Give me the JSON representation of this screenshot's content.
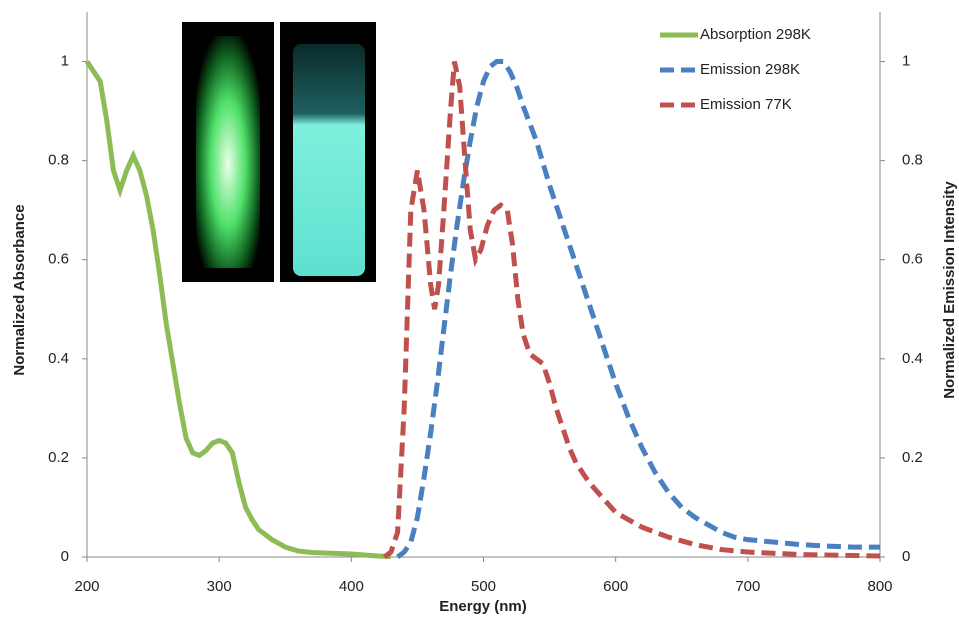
{
  "chart_data": {
    "type": "line",
    "x_label": "Energy (nm)",
    "y_label": "Normalized Absorbance",
    "y2_label": "Normalized Emission Intensity",
    "xlim": [
      200,
      800
    ],
    "xticks": [
      200,
      300,
      400,
      500,
      600,
      700,
      800
    ],
    "ylim": [
      0,
      1.1
    ],
    "yticks": [
      0,
      0.2,
      0.4,
      0.6,
      0.8,
      1
    ],
    "y2lim": [
      0,
      1.1
    ],
    "y2ticks": [
      0,
      0.2,
      0.4,
      0.6,
      0.8,
      1
    ],
    "legend": "top-right",
    "series": [
      {
        "name": "Absorption 298K",
        "color": "#8dbb55",
        "dash": false,
        "x": [
          200,
          205,
          210,
          215,
          220,
          225,
          230,
          235,
          240,
          245,
          250,
          255,
          260,
          265,
          270,
          275,
          280,
          285,
          290,
          295,
          300,
          305,
          310,
          315,
          320,
          325,
          330,
          340,
          350,
          360,
          370,
          380,
          390,
          400,
          410,
          420,
          430
        ],
        "values": [
          1.0,
          0.98,
          0.96,
          0.88,
          0.78,
          0.74,
          0.78,
          0.81,
          0.78,
          0.73,
          0.66,
          0.57,
          0.47,
          0.39,
          0.31,
          0.24,
          0.21,
          0.205,
          0.215,
          0.23,
          0.235,
          0.23,
          0.21,
          0.15,
          0.1,
          0.075,
          0.055,
          0.035,
          0.02,
          0.012,
          0.009,
          0.008,
          0.007,
          0.006,
          0.004,
          0.002,
          0.001
        ]
      },
      {
        "name": "Emission 298K",
        "color": "#4a7fc1",
        "dash": true,
        "axis": "y2",
        "x": [
          435,
          440,
          445,
          450,
          455,
          460,
          465,
          470,
          475,
          480,
          485,
          490,
          495,
          500,
          505,
          510,
          515,
          520,
          525,
          530,
          540,
          550,
          560,
          570,
          580,
          590,
          600,
          610,
          620,
          630,
          640,
          650,
          660,
          670,
          680,
          690,
          700,
          720,
          740,
          760,
          780,
          800
        ],
        "values": [
          0.0,
          0.01,
          0.03,
          0.08,
          0.16,
          0.25,
          0.35,
          0.46,
          0.57,
          0.67,
          0.76,
          0.84,
          0.91,
          0.96,
          0.99,
          1.0,
          1.0,
          0.98,
          0.95,
          0.91,
          0.84,
          0.75,
          0.67,
          0.59,
          0.51,
          0.43,
          0.35,
          0.28,
          0.22,
          0.17,
          0.13,
          0.1,
          0.08,
          0.065,
          0.05,
          0.04,
          0.035,
          0.03,
          0.025,
          0.022,
          0.02,
          0.02
        ]
      },
      {
        "name": "Emission 77K",
        "color": "#c0504d",
        "dash": true,
        "axis": "y2",
        "x": [
          425,
          430,
          435,
          440,
          445,
          450,
          455,
          460,
          463,
          466,
          470,
          475,
          478,
          482,
          486,
          490,
          494,
          498,
          503,
          508,
          513,
          518,
          522,
          526,
          530,
          535,
          540,
          545,
          550,
          555,
          560,
          565,
          570,
          580,
          590,
          600,
          620,
          640,
          660,
          680,
          700,
          740,
          800
        ],
        "values": [
          0.0,
          0.01,
          0.05,
          0.3,
          0.7,
          0.78,
          0.7,
          0.55,
          0.5,
          0.55,
          0.7,
          0.9,
          1.0,
          0.95,
          0.8,
          0.66,
          0.6,
          0.62,
          0.67,
          0.7,
          0.71,
          0.7,
          0.63,
          0.52,
          0.45,
          0.41,
          0.4,
          0.39,
          0.35,
          0.3,
          0.26,
          0.22,
          0.19,
          0.15,
          0.12,
          0.09,
          0.06,
          0.04,
          0.025,
          0.015,
          0.01,
          0.005,
          0.002
        ]
      }
    ]
  }
}
